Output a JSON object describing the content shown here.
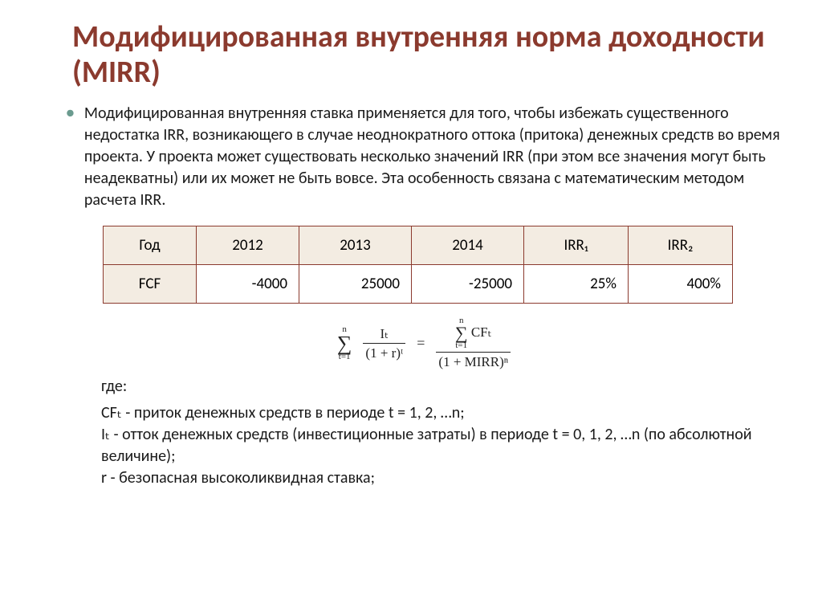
{
  "title": "Модифицированная внутренняя норма доходности (MIRR)",
  "paragraph": "Модифицированная внутренняя ставка применяется для того, чтобы избежать существенного  недостатка IRR, возникающего в случае неоднократного оттока (притока) денежных средств во время проекта. У проекта может существовать несколько значений IRR (при этом все значения могут быть неадекватны) или их может не быть вовсе. Эта особенность связана с математическим методом расчета IRR.",
  "table": {
    "header_bg": "#f3ece2",
    "border_color": "#8b3a2e",
    "row0": [
      "Год",
      "2012",
      "2013",
      "2014",
      "IRR₁",
      "IRR₂"
    ],
    "row1": [
      "FCF",
      "-4000",
      "25000",
      "-25000",
      "25%",
      "400%"
    ]
  },
  "formula": {
    "sum_top": "n",
    "sum_bot": "t=1",
    "left_num": "Iₜ",
    "left_den": "(1 + r)ᵗ",
    "right_num_sum_top": "n",
    "right_num_sum_bot": "t=1",
    "right_num_cf": "CFₜ",
    "right_den": "(1 + MIRR)ⁿ"
  },
  "where_label": "где:",
  "defs": {
    "cf": "CFₜ - приток денежных средств в периоде t = 1, 2, …n;",
    "it": "Iₜ - отток денежных средств (инвестиционные затраты)  в периоде t = 0, 1, 2, …n (по абсолютной величине);",
    "r": "r - безопасная высоколиквидная ставка;"
  }
}
